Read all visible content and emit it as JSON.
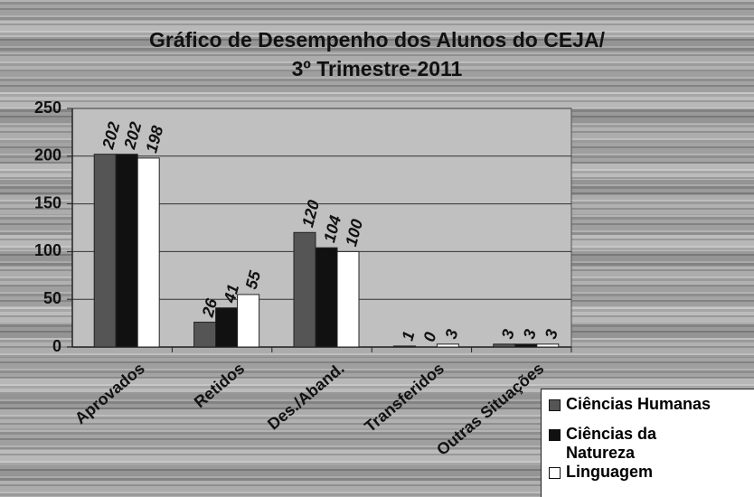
{
  "chart_data": {
    "type": "bar",
    "title": [
      "Gráfico de Desempenho dos Alunos do CEJA/",
      "3º Trimestre-2011"
    ],
    "categories": [
      "Aprovados",
      "Retidos",
      "Des./Aband.",
      "Transferidos",
      "Outras Situações"
    ],
    "series": [
      {
        "name": "Ciências Humanas",
        "color": "#555555",
        "values": [
          202,
          26,
          120,
          1,
          3
        ]
      },
      {
        "name": "Ciências da Natureza",
        "color": "#111111",
        "values": [
          202,
          41,
          104,
          0,
          3
        ]
      },
      {
        "name": "Linguagem",
        "color": "#ffffff",
        "values": [
          198,
          55,
          100,
          3,
          3
        ]
      }
    ],
    "ylim": [
      0,
      250
    ],
    "yticks": [
      0,
      50,
      100,
      150,
      200,
      250
    ],
    "grid": true,
    "legend": "bottom-right"
  }
}
